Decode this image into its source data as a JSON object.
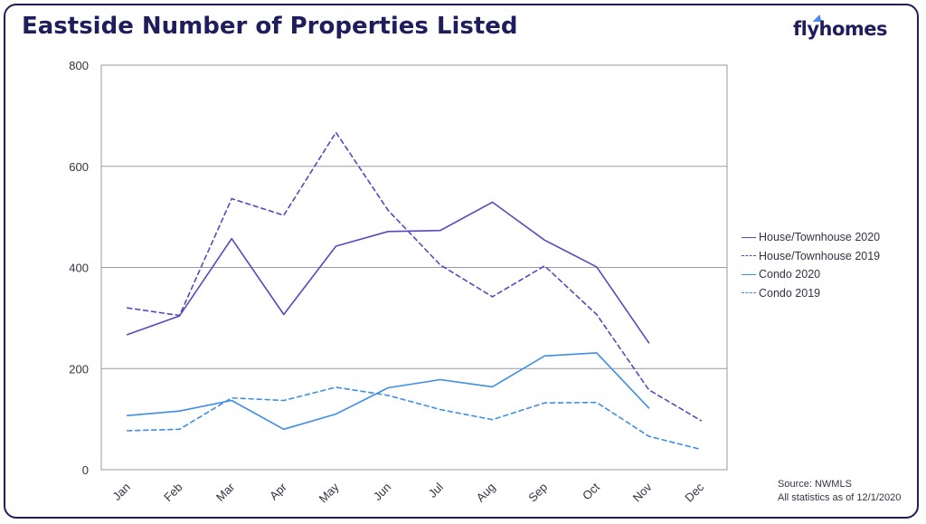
{
  "chart_data": {
    "type": "line",
    "title": "Eastside Number of Properties Listed",
    "categories": [
      "Jan",
      "Feb",
      "Mar",
      "Apr",
      "May",
      "Jun",
      "Jul",
      "Aug",
      "Sep",
      "Oct",
      "Nov",
      "Dec"
    ],
    "ylim": [
      0,
      800
    ],
    "yticks": [
      0,
      200,
      400,
      600,
      800
    ],
    "grid": true,
    "legend_position": "right",
    "series": [
      {
        "name": "House/Townhouse 2020",
        "color": "#5a47c0",
        "dash": "solid",
        "values": [
          267,
          304,
          457,
          307,
          442,
          471,
          473,
          529,
          454,
          401,
          251,
          null
        ]
      },
      {
        "name": "House/Townhouse 2019",
        "color": "#5a47c0",
        "dash": "dashed",
        "values": [
          320,
          305,
          536,
          503,
          667,
          513,
          405,
          342,
          403,
          307,
          158,
          97
        ]
      },
      {
        "name": "Condo 2020",
        "color": "#3d8ee6",
        "dash": "solid",
        "values": [
          107,
          116,
          137,
          80,
          110,
          162,
          178,
          164,
          225,
          231,
          122,
          null
        ]
      },
      {
        "name": "Condo 2019",
        "color": "#3d8ee6",
        "dash": "dashed",
        "values": [
          77,
          80,
          142,
          137,
          163,
          147,
          119,
          99,
          132,
          133,
          66,
          40
        ]
      }
    ]
  },
  "brand": {
    "logo_text": "flyhomes",
    "accent": "#4b8bf0",
    "ink": "#1f1d5c"
  },
  "footer": {
    "source_line": "Source: NWMLS",
    "as_of_line": "All statistics as of 12/1/2020"
  }
}
